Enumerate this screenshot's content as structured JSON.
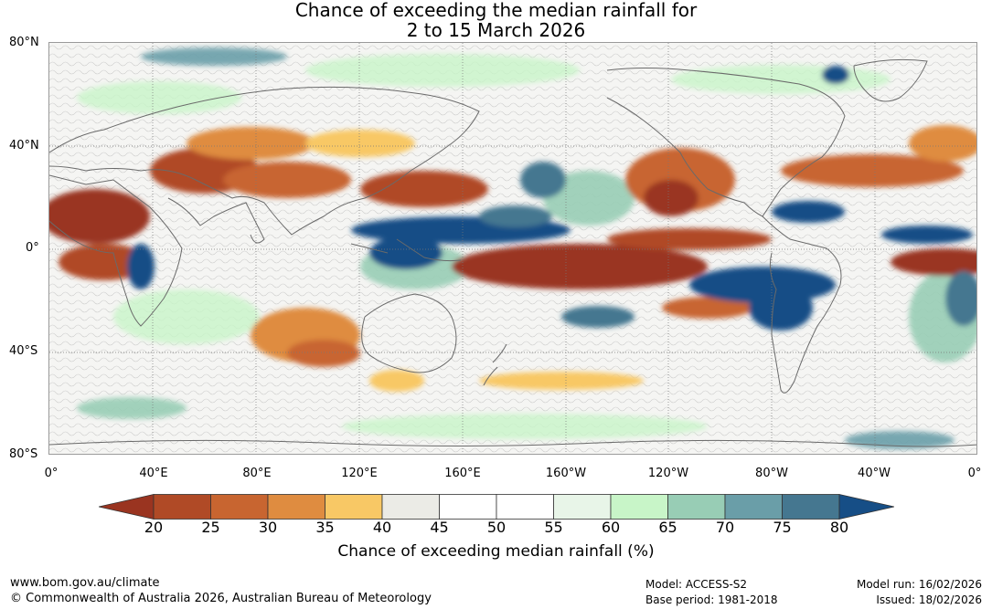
{
  "title": {
    "line1": "Chance of exceeding the median rainfall for",
    "line2": "2 to 15 March 2026"
  },
  "map": {
    "lat_labels": [
      "80°N",
      "40°N",
      "0°",
      "40°S",
      "80°S"
    ],
    "lon_labels": [
      "0°",
      "40°E",
      "80°E",
      "120°E",
      "160°E",
      "160°W",
      "120°W",
      "80°W",
      "40°W",
      "0°"
    ]
  },
  "legend": {
    "ticks": [
      "20",
      "25",
      "30",
      "35",
      "40",
      "45",
      "50",
      "55",
      "60",
      "65",
      "70",
      "75",
      "80"
    ],
    "colors": [
      "#9a3420",
      "#b04a26",
      "#c86530",
      "#df8c40",
      "#f8c865",
      "#ebebe6",
      "#ffffff",
      "#ffffff",
      "#e8f5e8",
      "#c8f5c8",
      "#98cdb5",
      "#6a9ea8",
      "#457790",
      "#164e86"
    ],
    "label": "Chance of exceeding median rainfall (%)"
  },
  "footer": {
    "website": "www.bom.gov.au/climate",
    "copyright": "© Commonwealth of Australia 2026, Australian Bureau of Meteorology",
    "model": "Model: ACCESS-S2",
    "base_period": "Base period: 1981-2018",
    "model_run": "Model run: 16/02/2026",
    "issued": "Issued: 18/02/2026"
  }
}
